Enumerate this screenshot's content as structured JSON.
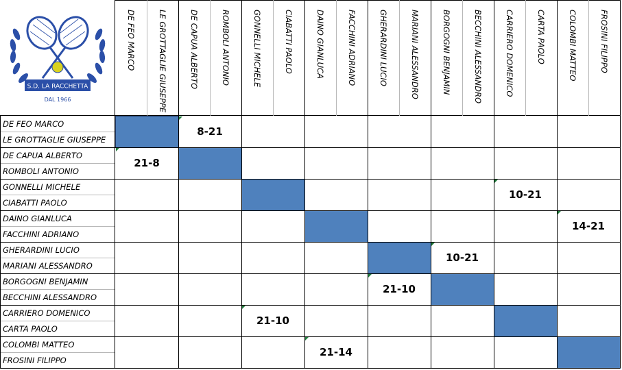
{
  "logo": {
    "club_name": "S.D. LA RACCHETTA",
    "since": "DAL 1966",
    "brand_color": "#2b4fa8",
    "ball_color": "#d9d21e"
  },
  "teams": [
    {
      "player1": "DE FEO MARCO",
      "player2": "LE GROTTAGLIE GIUSEPPE"
    },
    {
      "player1": "DE CAPUA ALBERTO",
      "player2": "ROMBOLI ANTONIO"
    },
    {
      "player1": "GONNELLI MICHELE",
      "player2": "CIABATTI PAOLO"
    },
    {
      "player1": "DAINO GIANLUCA",
      "player2": "FACCHINI ADRIANO"
    },
    {
      "player1": "GHERARDINI LUCIO",
      "player2": "MARIANI ALESSANDRO"
    },
    {
      "player1": "BORGOGNI BENJAMIN",
      "player2": "BECCHINI ALESSANDRO"
    },
    {
      "player1": "CARRIERO DOMENICO",
      "player2": "CARTA PAOLO"
    },
    {
      "player1": "COLOMBI MATTEO",
      "player2": "FROSINI FILIPPO"
    }
  ],
  "results": [
    {
      "row": 0,
      "col": 1,
      "score": "8-21"
    },
    {
      "row": 1,
      "col": 0,
      "score": "21-8"
    },
    {
      "row": 2,
      "col": 6,
      "score": "10-21"
    },
    {
      "row": 3,
      "col": 7,
      "score": "14-21"
    },
    {
      "row": 4,
      "col": 5,
      "score": "10-21"
    },
    {
      "row": 5,
      "col": 4,
      "score": "21-10"
    },
    {
      "row": 6,
      "col": 2,
      "score": "21-10"
    },
    {
      "row": 7,
      "col": 3,
      "score": "21-14"
    }
  ],
  "colors": {
    "diagonal": "#4f81bd",
    "grid": "#000000",
    "marker": "#1e7a3a"
  }
}
